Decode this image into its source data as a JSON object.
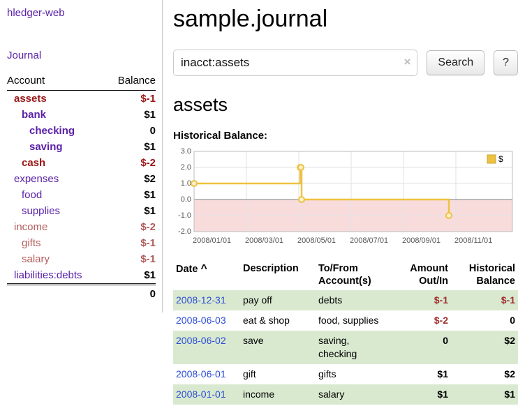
{
  "sidebar": {
    "app_title": "hledger-web",
    "journal_label": "Journal",
    "accounts": {
      "header_account": "Account",
      "header_balance": "Balance",
      "rows": [
        {
          "name": "assets",
          "balance": "$-1"
        },
        {
          "name": "bank",
          "balance": "$1"
        },
        {
          "name": "checking",
          "balance": "0"
        },
        {
          "name": "saving",
          "balance": "$1"
        },
        {
          "name": "cash",
          "balance": "$-2"
        },
        {
          "name": "expenses",
          "balance": "$2"
        },
        {
          "name": "food",
          "balance": "$1"
        },
        {
          "name": "supplies",
          "balance": "$1"
        },
        {
          "name": "income",
          "balance": "$-2"
        },
        {
          "name": "gifts",
          "balance": "$-1"
        },
        {
          "name": "salary",
          "balance": "$-1"
        },
        {
          "name": "liabilities:debts",
          "balance": "$1"
        }
      ],
      "total": "0"
    }
  },
  "main": {
    "title": "sample.journal",
    "search": {
      "value": "inacct:assets",
      "clear_icon": "×",
      "button_label": "Search",
      "help_label": "?"
    },
    "account_heading": "assets",
    "chart_label": "Historical Balance:"
  },
  "chart_data": {
    "type": "line",
    "step": true,
    "title": "Historical Balance",
    "series": [
      {
        "name": "$",
        "points": [
          {
            "date": "2008-01-01",
            "value": 1
          },
          {
            "date": "2008-06-01",
            "value": 2
          },
          {
            "date": "2008-06-02",
            "value": 2
          },
          {
            "date": "2008-06-03",
            "value": 0
          },
          {
            "date": "2008-12-31",
            "value": -1
          }
        ]
      }
    ],
    "ylim": [
      -2,
      3
    ],
    "x_axis_range": [
      "2008-01-01",
      "2009-04-01"
    ],
    "y_ticks": [
      "3.0",
      "2.0",
      "1.0",
      "0.0",
      "-1.0",
      "-2.0"
    ],
    "x_ticks": [
      "2008/01/01",
      "2008/03/01",
      "2008/05/01",
      "2008/07/01",
      "2008/09/01",
      "2008/11/01"
    ],
    "legend": {
      "label": "$",
      "color": "#edc240"
    },
    "line_color": "#edc240",
    "negative_region_color": "#f8dcdc",
    "grid": true,
    "legend_position": "top-right"
  },
  "register": {
    "headers": {
      "date": "Date",
      "sort_icon": "^",
      "description": "Description",
      "account_line1": "To/From",
      "account_line2": "Account(s)",
      "amount_line1": "Amount",
      "amount_line2": "Out/In",
      "balance_line1": "Historical",
      "balance_line2": "Balance"
    },
    "rows": [
      {
        "date": "2008-12-31",
        "description": "pay off",
        "accounts": "debts",
        "amount": "$-1",
        "balance": "$-1"
      },
      {
        "date": "2008-06-03",
        "description": "eat & shop",
        "accounts": "food, supplies",
        "amount": "$-2",
        "balance": "0"
      },
      {
        "date": "2008-06-02",
        "description": "save",
        "accounts": "saving, checking",
        "amount": "0",
        "balance": "$2"
      },
      {
        "date": "2008-06-01",
        "description": "gift",
        "accounts": "gifts",
        "amount": "$1",
        "balance": "$2"
      },
      {
        "date": "2008-01-01",
        "description": "income",
        "accounts": "salary",
        "amount": "$1",
        "balance": "$1"
      }
    ]
  }
}
